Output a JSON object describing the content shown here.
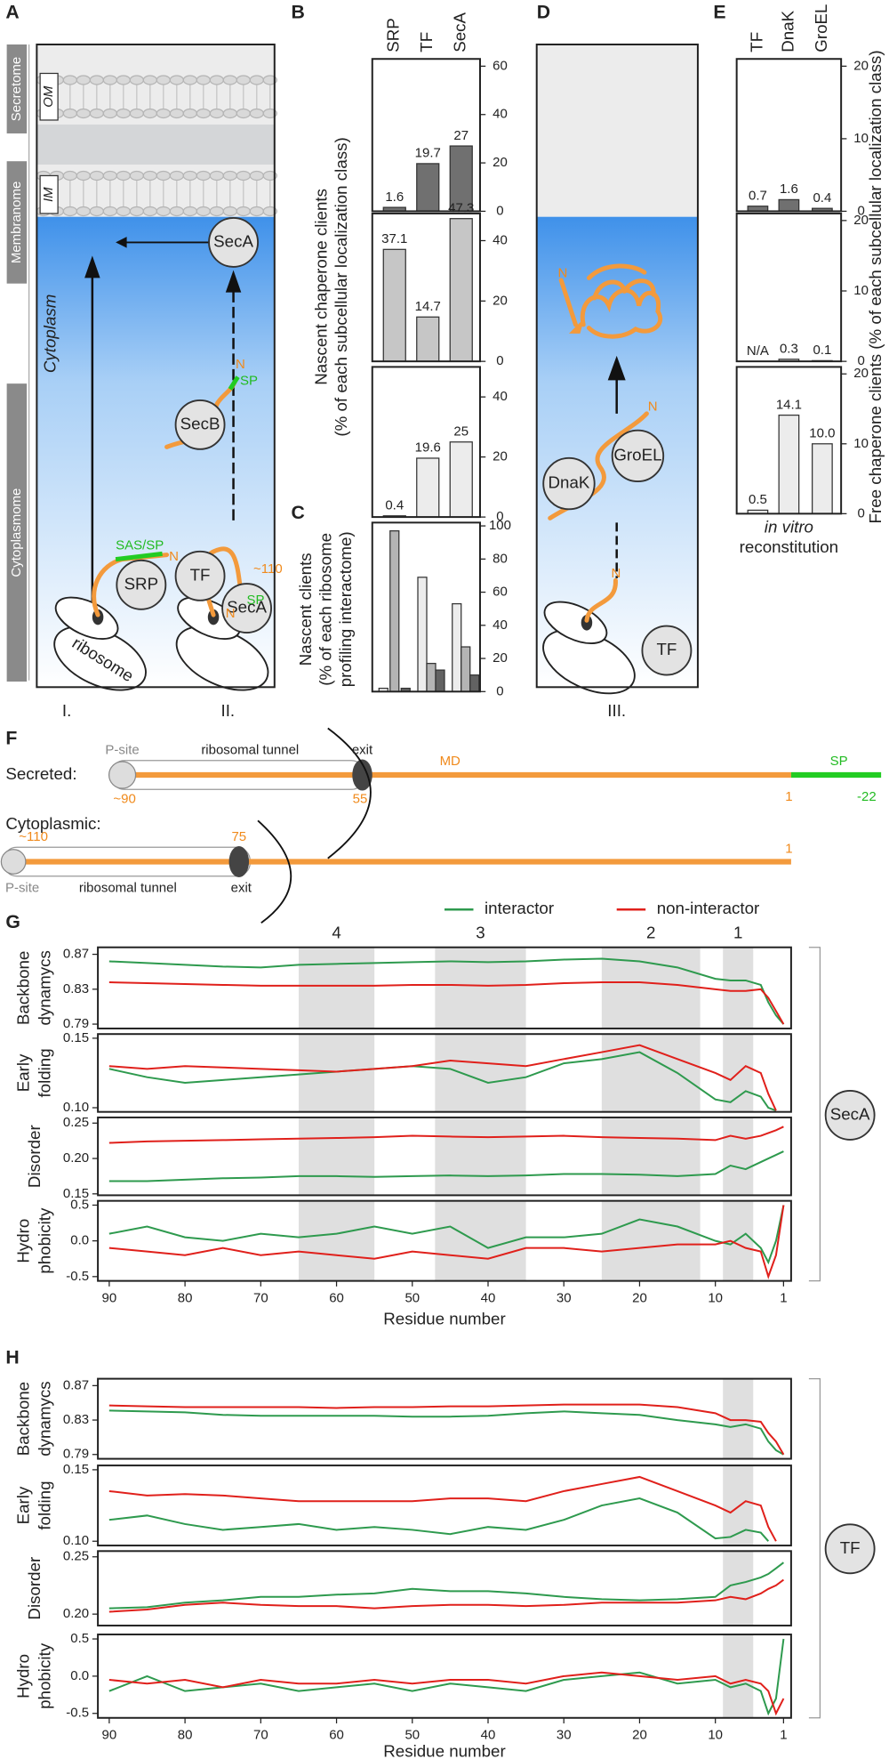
{
  "panel_labels": [
    "A",
    "B",
    "C",
    "D",
    "E",
    "F",
    "G",
    "H"
  ],
  "panel_a": {
    "compartments": [
      "Secretome",
      "Membranome",
      "Cytoplasmome"
    ],
    "membranes": [
      "OM",
      "IM"
    ],
    "cytoplasm": "Cytoplasm",
    "chaperones": [
      "SecA",
      "SecB",
      "SRP",
      "TF",
      "SecA"
    ],
    "signal_labels": [
      "SAS/SP",
      "SP",
      "SP"
    ],
    "n_termini": [
      "N",
      "N",
      "N"
    ],
    "length": "~110",
    "ribosome": "ribosome",
    "pathways": [
      "I.",
      "II."
    ]
  },
  "panel_d": {
    "chaperones": [
      "DnaK",
      "GroEL",
      "TF"
    ],
    "n_termini": [
      "N",
      "N",
      "N"
    ],
    "pathway": "III."
  },
  "panel_b": {
    "ylabel": [
      "Nascent chaperone clients",
      "(% of each subcellular localization class)"
    ]
  },
  "panel_c": {
    "ylabel": [
      "Nascent clients",
      "(% of each ribosome",
      "profiling interactome)"
    ]
  },
  "panel_e": {
    "ylabel": "Free chaperone clients (% of each subcellular localization class)",
    "note_italic": "in vitro",
    "note": "reconstitution"
  },
  "panel_f": {
    "rows": [
      {
        "name": "Secreted:",
        "p_site": "P-site",
        "tunnel": "ribosomal tunnel",
        "exit": "exit",
        "domain": "MD",
        "signal": "SP",
        "positions": [
          "~90",
          55,
          1,
          -22
        ]
      },
      {
        "name": "Cytoplasmic:",
        "p_site": "P-site",
        "tunnel": "ribosomal tunnel",
        "exit": "exit",
        "positions": [
          "~110",
          75,
          1
        ]
      }
    ]
  },
  "panel_g": {
    "regions": [
      {
        "label": 4,
        "range": [
          65,
          55
        ]
      },
      {
        "label": 3,
        "range": [
          47,
          35
        ]
      },
      {
        "label": 2,
        "range": [
          25,
          12
        ]
      },
      {
        "label": 1,
        "range": [
          9,
          5
        ]
      }
    ],
    "xlabel": "Residue number",
    "chaperone": "SecA"
  },
  "panel_h": {
    "regions": [
      {
        "range": [
          9,
          5
        ]
      }
    ],
    "xlabel": "Residue number",
    "chaperone": "TF"
  },
  "chart_data": [
    {
      "type": "bar",
      "categories": [
        "SRP",
        "TF",
        "SecA"
      ],
      "values": [
        1.6,
        19.7,
        27
      ],
      "color": "#707070",
      "ylim": [
        0,
        63
      ],
      "yticks": [
        0,
        20,
        40,
        60
      ]
    },
    {
      "type": "bar",
      "values": [
        37.1,
        14.7,
        47.3
      ],
      "color": "#c6c6c6",
      "ylim": [
        0,
        49
      ],
      "yticks": [
        0,
        20,
        40
      ]
    },
    {
      "type": "bar",
      "values": [
        0.4,
        19.6,
        25
      ],
      "color": "#ececec",
      "ylim": [
        0,
        50
      ],
      "yticks": [
        0,
        20,
        40
      ]
    },
    {
      "type": "bar",
      "series": [
        {
          "color": "#ececec",
          "values": [
            2,
            69,
            53
          ]
        },
        {
          "color": "#b4b4b4",
          "values": [
            97,
            17,
            27
          ]
        },
        {
          "color": "#626262",
          "values": [
            2,
            13,
            10
          ]
        }
      ],
      "ylim": [
        0,
        102
      ],
      "yticks": [
        0,
        20,
        40,
        60,
        80,
        100
      ]
    },
    {
      "type": "bar",
      "categories": [
        "TF",
        "DnaK",
        "GroEL"
      ],
      "values": [
        0.7,
        1.6,
        0.4
      ],
      "color": "#707070",
      "ylim": [
        0,
        21
      ],
      "yticks": [
        0,
        10,
        20
      ]
    },
    {
      "type": "bar",
      "values": [
        null,
        0.3,
        0.1
      ],
      "value_labels": [
        "N/A",
        "0.3",
        "0.1"
      ],
      "color": "#c6c6c6",
      "ylim": [
        0,
        21
      ],
      "yticks": [
        0,
        10,
        20
      ]
    },
    {
      "type": "bar",
      "values": [
        0.5,
        14.1,
        10
      ],
      "value_labels": [
        "0.5",
        "14.1",
        "10.0"
      ],
      "color": "#ececec",
      "ylim": [
        0,
        21
      ],
      "yticks": [
        0,
        10,
        20
      ]
    },
    {
      "type": "line",
      "ylabel": [
        "Backbone",
        "dynamycs"
      ],
      "x": [
        90,
        85,
        80,
        75,
        70,
        65,
        60,
        55,
        50,
        45,
        40,
        35,
        30,
        25,
        20,
        15,
        10,
        8,
        6,
        4,
        3,
        2,
        1
      ],
      "xlim": [
        91.5,
        0
      ],
      "ylim": [
        0.785,
        0.878
      ],
      "yticks": [
        0.79,
        0.83,
        0.87
      ],
      "series": [
        {
          "name": "interactor",
          "color": "#2e9a4e",
          "values": [
            0.862,
            0.86,
            0.858,
            0.856,
            0.855,
            0.858,
            0.859,
            0.86,
            0.861,
            0.862,
            0.861,
            0.862,
            0.864,
            0.865,
            0.862,
            0.855,
            0.842,
            0.84,
            0.84,
            0.835,
            0.815,
            0.8,
            0.79
          ]
        },
        {
          "name": "non-interactor",
          "color": "#e0201b",
          "values": [
            0.838,
            0.837,
            0.836,
            0.835,
            0.834,
            0.834,
            0.834,
            0.834,
            0.835,
            0.835,
            0.834,
            0.835,
            0.837,
            0.838,
            0.838,
            0.835,
            0.83,
            0.828,
            0.828,
            0.83,
            0.82,
            0.805,
            0.79
          ]
        }
      ]
    },
    {
      "type": "line",
      "ylabel": [
        "Early",
        "folding"
      ],
      "x": [
        90,
        85,
        80,
        75,
        70,
        65,
        60,
        55,
        50,
        45,
        40,
        35,
        30,
        25,
        20,
        15,
        10,
        8,
        6,
        4,
        3,
        2,
        1
      ],
      "xlim": [
        91.5,
        0
      ],
      "ylim": [
        0.097,
        0.153
      ],
      "yticks": [
        {
          "value": 0.1,
          "label": "0.10"
        },
        0.15
      ],
      "series": [
        {
          "name": "interactor",
          "color": "#2e9a4e",
          "values": [
            0.128,
            0.122,
            0.118,
            0.12,
            0.122,
            0.124,
            0.126,
            0.128,
            0.13,
            0.128,
            0.118,
            0.122,
            0.132,
            0.135,
            0.14,
            0.125,
            0.106,
            0.104,
            0.112,
            0.108,
            0.1,
            0.098,
            null
          ]
        },
        {
          "name": "non-interactor",
          "color": "#e0201b",
          "values": [
            0.13,
            0.128,
            0.13,
            0.129,
            0.128,
            0.127,
            0.126,
            0.128,
            0.13,
            0.134,
            0.132,
            0.13,
            0.135,
            0.14,
            0.145,
            0.135,
            0.125,
            0.12,
            0.13,
            0.125,
            0.11,
            0.098,
            null
          ]
        }
      ]
    },
    {
      "type": "line",
      "ylabel": [
        "Disorder"
      ],
      "x": [
        90,
        85,
        80,
        75,
        70,
        65,
        60,
        55,
        50,
        45,
        40,
        35,
        30,
        25,
        20,
        15,
        10,
        8,
        6,
        4,
        3,
        2,
        1
      ],
      "xlim": [
        91.5,
        0
      ],
      "ylim": [
        0.148,
        0.258
      ],
      "yticks": [
        0.15,
        {
          "value": 0.2,
          "label": "0.20"
        },
        0.25
      ],
      "series": [
        {
          "name": "interactor",
          "color": "#2e9a4e",
          "values": [
            0.168,
            0.168,
            0.17,
            0.172,
            0.173,
            0.175,
            0.175,
            0.174,
            0.175,
            0.176,
            0.175,
            0.176,
            0.178,
            0.178,
            0.177,
            0.175,
            0.178,
            0.19,
            0.185,
            0.195,
            0.2,
            0.205,
            0.21
          ]
        },
        {
          "name": "non-interactor",
          "color": "#e0201b",
          "values": [
            0.222,
            0.224,
            0.225,
            0.226,
            0.227,
            0.228,
            0.229,
            0.23,
            0.232,
            0.231,
            0.23,
            0.231,
            0.232,
            0.23,
            0.229,
            0.228,
            0.226,
            0.232,
            0.228,
            0.232,
            0.236,
            0.24,
            0.245
          ]
        }
      ]
    },
    {
      "type": "line",
      "ylabel": [
        "Hydro",
        "phobicity"
      ],
      "x": [
        90,
        85,
        80,
        75,
        70,
        65,
        60,
        55,
        50,
        45,
        40,
        35,
        30,
        25,
        20,
        15,
        10,
        8,
        6,
        4,
        3,
        2,
        1
      ],
      "xlim": [
        91.5,
        0
      ],
      "ylim": [
        -0.56,
        0.56
      ],
      "yticks": [
        -0.5,
        {
          "value": 0,
          "label": "0.0"
        },
        0.5
      ],
      "xticks": [
        90,
        80,
        70,
        60,
        50,
        40,
        30,
        20,
        10,
        1
      ],
      "series": [
        {
          "name": "interactor",
          "color": "#2e9a4e",
          "values": [
            0.1,
            0.2,
            0.05,
            0,
            0.1,
            0.05,
            0.1,
            0.2,
            0.1,
            0.2,
            -0.1,
            0.05,
            0.05,
            0.1,
            0.3,
            0.2,
            0,
            -0.05,
            0.1,
            -0.1,
            -0.3,
            0,
            0.5
          ]
        },
        {
          "name": "non-interactor",
          "color": "#e0201b",
          "values": [
            -0.1,
            -0.15,
            -0.2,
            -0.1,
            -0.2,
            -0.15,
            -0.2,
            -0.25,
            -0.15,
            -0.2,
            -0.25,
            -0.1,
            -0.1,
            -0.15,
            -0.1,
            -0.05,
            -0.05,
            0,
            -0.1,
            -0.15,
            -0.5,
            -0.2,
            0.5
          ]
        }
      ]
    },
    {
      "type": "line",
      "ylabel": [
        "Backbone",
        "dynamycs"
      ],
      "x": [
        90,
        85,
        80,
        75,
        70,
        65,
        60,
        55,
        50,
        45,
        40,
        35,
        30,
        25,
        20,
        15,
        10,
        8,
        6,
        4,
        3,
        2,
        1
      ],
      "xlim": [
        91.5,
        0
      ],
      "ylim": [
        0.785,
        0.878
      ],
      "yticks": [
        0.79,
        0.83,
        0.87
      ],
      "series": [
        {
          "name": "interactor",
          "color": "#2e9a4e",
          "values": [
            0.841,
            0.84,
            0.839,
            0.836,
            0.835,
            0.835,
            0.835,
            0.835,
            0.834,
            0.834,
            0.835,
            0.838,
            0.84,
            0.838,
            0.836,
            0.83,
            0.825,
            0.822,
            0.825,
            0.82,
            0.805,
            0.795,
            0.79
          ]
        },
        {
          "name": "non-interactor",
          "color": "#e0201b",
          "values": [
            0.847,
            0.846,
            0.845,
            0.845,
            0.845,
            0.845,
            0.844,
            0.845,
            0.845,
            0.846,
            0.846,
            0.847,
            0.848,
            0.848,
            0.848,
            0.845,
            0.838,
            0.83,
            0.83,
            0.828,
            0.815,
            0.805,
            0.79
          ]
        }
      ]
    },
    {
      "type": "line",
      "ylabel": [
        "Early",
        "folding"
      ],
      "x": [
        90,
        85,
        80,
        75,
        70,
        65,
        60,
        55,
        50,
        45,
        40,
        35,
        30,
        25,
        20,
        15,
        10,
        8,
        6,
        4,
        3,
        2,
        1
      ],
      "xlim": [
        91.5,
        0
      ],
      "ylim": [
        0.097,
        0.153
      ],
      "yticks": [
        {
          "value": 0.1,
          "label": "0.10"
        },
        0.15
      ],
      "series": [
        {
          "name": "interactor",
          "color": "#2e9a4e",
          "values": [
            0.115,
            0.118,
            0.112,
            0.108,
            0.11,
            0.112,
            0.108,
            0.11,
            0.108,
            0.105,
            0.11,
            0.108,
            0.115,
            0.125,
            0.13,
            0.12,
            0.102,
            0.103,
            0.108,
            0.106,
            0.1,
            null,
            null
          ]
        },
        {
          "name": "non-interactor",
          "color": "#e0201b",
          "values": [
            0.135,
            0.132,
            0.133,
            0.132,
            0.13,
            0.128,
            0.128,
            0.128,
            0.128,
            0.13,
            0.13,
            0.128,
            0.135,
            0.14,
            0.145,
            0.135,
            0.125,
            0.12,
            0.128,
            0.125,
            0.11,
            0.1,
            null
          ]
        }
      ]
    },
    {
      "type": "line",
      "ylabel": [
        "Disorder"
      ],
      "x": [
        90,
        85,
        80,
        75,
        70,
        65,
        60,
        55,
        50,
        45,
        40,
        35,
        30,
        25,
        20,
        15,
        10,
        8,
        6,
        4,
        3,
        2,
        1
      ],
      "xlim": [
        91.5,
        0
      ],
      "ylim": [
        0.19,
        0.255
      ],
      "yticks": [
        {
          "value": 0.2,
          "label": "0.20"
        },
        0.25
      ],
      "series": [
        {
          "name": "interactor",
          "color": "#2e9a4e",
          "values": [
            0.205,
            0.206,
            0.21,
            0.212,
            0.215,
            0.215,
            0.217,
            0.218,
            0.222,
            0.22,
            0.22,
            0.218,
            0.215,
            0.213,
            0.212,
            0.213,
            0.215,
            0.225,
            0.228,
            0.232,
            0.235,
            0.24,
            0.245
          ]
        },
        {
          "name": "non-interactor",
          "color": "#e0201b",
          "values": [
            0.202,
            0.204,
            0.208,
            0.21,
            0.208,
            0.207,
            0.207,
            0.205,
            0.207,
            0.208,
            0.208,
            0.207,
            0.208,
            0.21,
            0.21,
            0.21,
            0.212,
            0.215,
            0.213,
            0.218,
            0.222,
            0.225,
            0.23
          ]
        }
      ]
    },
    {
      "type": "line",
      "ylabel": [
        "Hydro",
        "phobicity"
      ],
      "x": [
        90,
        85,
        80,
        75,
        70,
        65,
        60,
        55,
        50,
        45,
        40,
        35,
        30,
        25,
        20,
        15,
        10,
        8,
        6,
        4,
        3,
        2,
        1
      ],
      "xlim": [
        91.5,
        0
      ],
      "ylim": [
        -0.56,
        0.56
      ],
      "yticks": [
        -0.5,
        {
          "value": 0,
          "label": "0.0"
        },
        0.5
      ],
      "xticks": [
        90,
        80,
        70,
        60,
        50,
        40,
        30,
        20,
        10,
        1
      ],
      "series": [
        {
          "name": "interactor",
          "color": "#2e9a4e",
          "values": [
            -0.2,
            0,
            -0.2,
            -0.15,
            -0.1,
            -0.2,
            -0.15,
            -0.1,
            -0.2,
            -0.1,
            -0.15,
            -0.2,
            -0.05,
            0,
            0.05,
            -0.1,
            -0.05,
            -0.15,
            -0.1,
            -0.2,
            -0.5,
            -0.3,
            0.5
          ]
        },
        {
          "name": "non-interactor",
          "color": "#e0201b",
          "values": [
            -0.05,
            -0.1,
            -0.05,
            -0.15,
            -0.05,
            -0.1,
            -0.1,
            -0.05,
            -0.1,
            -0.05,
            -0.05,
            -0.1,
            0,
            0.05,
            0,
            -0.05,
            0,
            -0.1,
            -0.05,
            -0.1,
            -0.2,
            -0.5,
            -0.3
          ]
        }
      ]
    }
  ]
}
